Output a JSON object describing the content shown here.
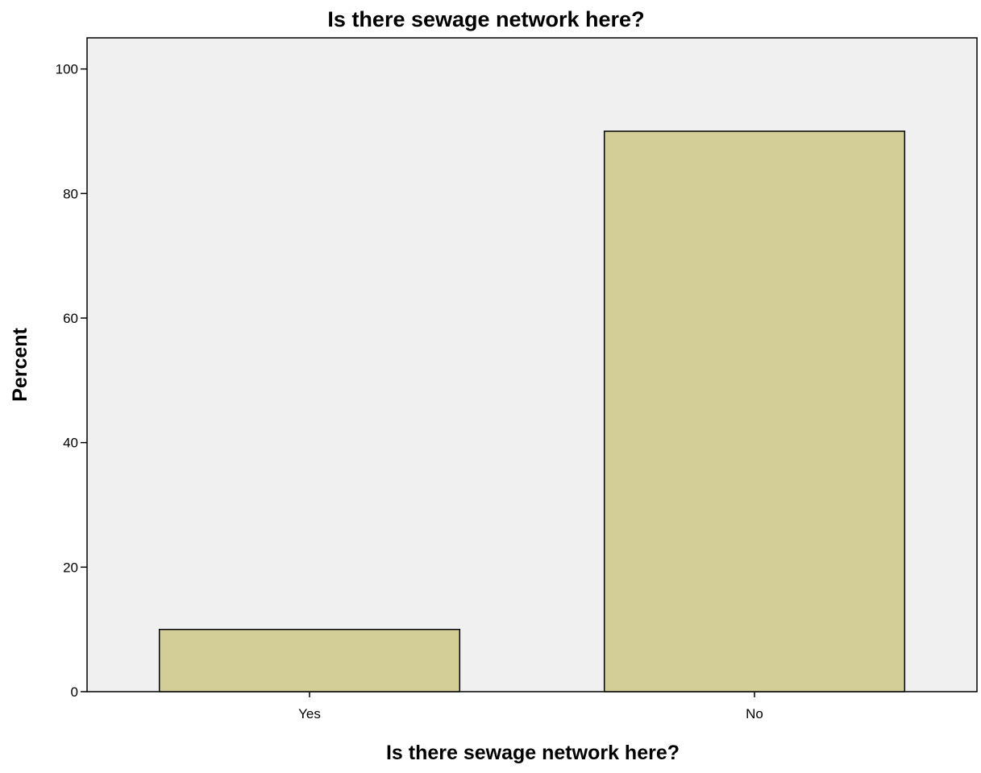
{
  "chart_data": {
    "type": "bar",
    "title": "Is there sewage network here?",
    "xlabel": "Is there sewage network here?",
    "ylabel": "Percent",
    "categories": [
      "Yes",
      "No"
    ],
    "values": [
      10,
      90
    ],
    "ylim": [
      0,
      105
    ],
    "yticks": [
      "0",
      "20",
      "40",
      "60",
      "80",
      "100"
    ],
    "ytick_values": [
      0,
      20,
      40,
      60,
      80,
      100
    ],
    "grid": false,
    "colors": {
      "bar_fill": "#d3cd97",
      "bar_stroke": "#000000",
      "plot_background": "#f0f0f0",
      "axis": "#000000"
    }
  }
}
